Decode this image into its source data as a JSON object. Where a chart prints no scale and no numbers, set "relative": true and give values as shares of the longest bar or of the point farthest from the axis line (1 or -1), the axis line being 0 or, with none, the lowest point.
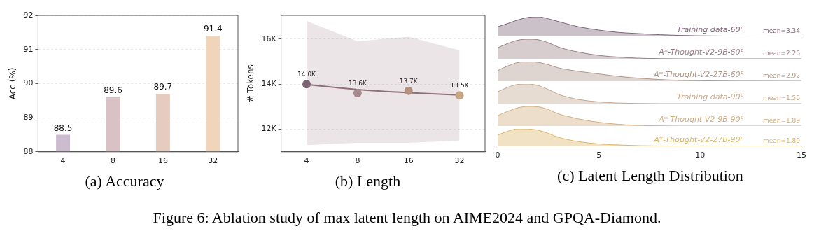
{
  "chart_data": [
    {
      "type": "bar",
      "title": "(a)  Accuracy",
      "ylabel": "Acc (%)",
      "categories": [
        "4",
        "8",
        "16",
        "32"
      ],
      "values": [
        88.5,
        89.6,
        89.7,
        91.4
      ],
      "colors": [
        "#cdbcd0",
        "#d9c2c6",
        "#e6cbbf",
        "#f0d5bb"
      ],
      "ylim": [
        88,
        92
      ],
      "yticks": [
        88,
        89,
        90,
        91,
        92
      ],
      "grid": "y",
      "data_labels": true,
      "annotations": [
        "Figure 6: Ablation study of max latent length on AIME2024 and GPQA-Diamond."
      ]
    },
    {
      "type": "line",
      "title": "(b)  Length",
      "ylabel": "# Tokens",
      "categories": [
        "4",
        "8",
        "16",
        "32"
      ],
      "ylim": [
        11000,
        17050
      ],
      "yticks": [
        {
          "value": 12000,
          "label": "12K"
        },
        {
          "value": 14000,
          "label": "14K"
        },
        {
          "value": 16000,
          "label": "16K"
        }
      ],
      "grid": "y",
      "series": [
        {
          "type": "scatter",
          "marker": "circle",
          "color": "#9a7f85",
          "colors": [
            "#7a6272",
            "#a68a8e",
            "#b09080",
            "#c4a482"
          ],
          "values": [
            14000,
            13600,
            13700,
            13500
          ],
          "value_labels": [
            "14.0K",
            "13.6K",
            "13.7K",
            "13.5K"
          ],
          "lower": [
            11300,
            11400,
            11400,
            11500
          ],
          "upper": [
            16800,
            15900,
            16100,
            15500
          ]
        },
        {
          "type": "line",
          "color": "#8e6f78",
          "values": [
            13980,
            13760,
            13620,
            13520
          ]
        }
      ]
    },
    {
      "type": "area",
      "relative": true,
      "xlim": [
        0,
        15
      ],
      "tick_labels": false,
      "x": [
        0,
        0.5,
        1,
        1.5,
        2,
        2.5,
        3,
        3.5,
        4,
        5,
        6,
        7,
        8,
        9,
        10,
        12,
        15
      ],
      "series": [
        {
          "name": "Training data-60°",
          "color": "#7d6478",
          "values": [
            0.49,
            0.66,
            0.84,
            0.97,
            1.0,
            0.9,
            0.76,
            0.62,
            0.49,
            0.32,
            0.2,
            0.14,
            0.085,
            0.05,
            0.03,
            0.01,
            0
          ]
        }
      ],
      "annotations": [
        "mean=3.34"
      ]
    },
    {
      "type": "area",
      "relative": true,
      "xlim": [
        0,
        15
      ],
      "tick_labels": false,
      "x": [
        0,
        0.5,
        1,
        1.5,
        2,
        2.5,
        3,
        3.5,
        4,
        5,
        6,
        7,
        8,
        9,
        10,
        12,
        15
      ],
      "series": [
        {
          "name": "A*-Thought-V2-9B-60°",
          "color": "#9a7f85",
          "values": [
            0.56,
            0.78,
            0.95,
            1.0,
            0.97,
            0.82,
            0.6,
            0.45,
            0.34,
            0.17,
            0.085,
            0.03,
            0.01,
            0,
            0,
            0,
            0
          ]
        }
      ],
      "annotations": [
        "mean=2.26"
      ]
    },
    {
      "type": "area",
      "relative": true,
      "xlim": [
        0,
        15
      ],
      "tick_labels": false,
      "x": [
        0,
        0.5,
        1,
        1.5,
        2,
        2.5,
        3,
        3.5,
        4,
        5,
        6,
        7,
        8,
        9,
        10,
        12,
        15
      ],
      "series": [
        {
          "name": "A*-Thought-V2-27B-60°",
          "color": "#b0968a",
          "values": [
            0.54,
            0.78,
            0.95,
            1.0,
            0.96,
            0.84,
            0.68,
            0.58,
            0.5,
            0.37,
            0.24,
            0.15,
            0.085,
            0.04,
            0.02,
            0.005,
            0
          ]
        }
      ],
      "annotations": [
        "mean=2.92"
      ]
    },
    {
      "type": "area",
      "relative": true,
      "xlim": [
        0,
        15
      ],
      "tick_labels": false,
      "x": [
        0,
        0.5,
        1,
        1.5,
        2,
        2.5,
        3,
        3.5,
        4,
        5,
        6,
        7,
        8,
        9,
        10,
        12,
        15
      ],
      "series": [
        {
          "name": "Training data-90°",
          "color": "#c4a88e",
          "values": [
            0.6,
            0.83,
            0.98,
            1.0,
            0.92,
            0.72,
            0.47,
            0.32,
            0.21,
            0.085,
            0.03,
            0.01,
            0,
            0,
            0,
            0,
            0
          ]
        }
      ],
      "annotations": [
        "mean=1.56"
      ]
    },
    {
      "type": "area",
      "relative": true,
      "xlim": [
        0,
        15
      ],
      "tick_labels": false,
      "x": [
        0,
        0.5,
        1,
        1.5,
        2,
        2.5,
        3,
        3.5,
        4,
        5,
        6,
        7,
        8,
        9,
        10,
        12,
        15
      ],
      "series": [
        {
          "name": "A*-Thought-V2-9B-90°",
          "color": "#d2ad80",
          "values": [
            0.53,
            0.75,
            0.93,
            1.0,
            0.98,
            0.84,
            0.62,
            0.48,
            0.36,
            0.19,
            0.085,
            0.03,
            0.01,
            0,
            0,
            0,
            0
          ]
        }
      ],
      "annotations": [
        "mean=1.89"
      ]
    },
    {
      "type": "area",
      "relative": true,
      "title": "(c)  Latent Length Distribution",
      "xlim": [
        0,
        15
      ],
      "xticks": [
        0,
        5,
        10,
        15
      ],
      "tick_labels": "x",
      "x": [
        0,
        0.5,
        1,
        1.5,
        2,
        2.5,
        3,
        3.5,
        4,
        5,
        6,
        7,
        8,
        9,
        10,
        12,
        15
      ],
      "series": [
        {
          "name": "A*-Thought-V2-27B-90°",
          "color": "#dcb668",
          "values": [
            0.64,
            0.86,
            1.0,
            0.99,
            0.92,
            0.74,
            0.51,
            0.37,
            0.26,
            0.13,
            0.07,
            0.03,
            0.015,
            0.005,
            0,
            0,
            0
          ]
        }
      ],
      "annotations": [
        "mean=1.80"
      ]
    }
  ]
}
